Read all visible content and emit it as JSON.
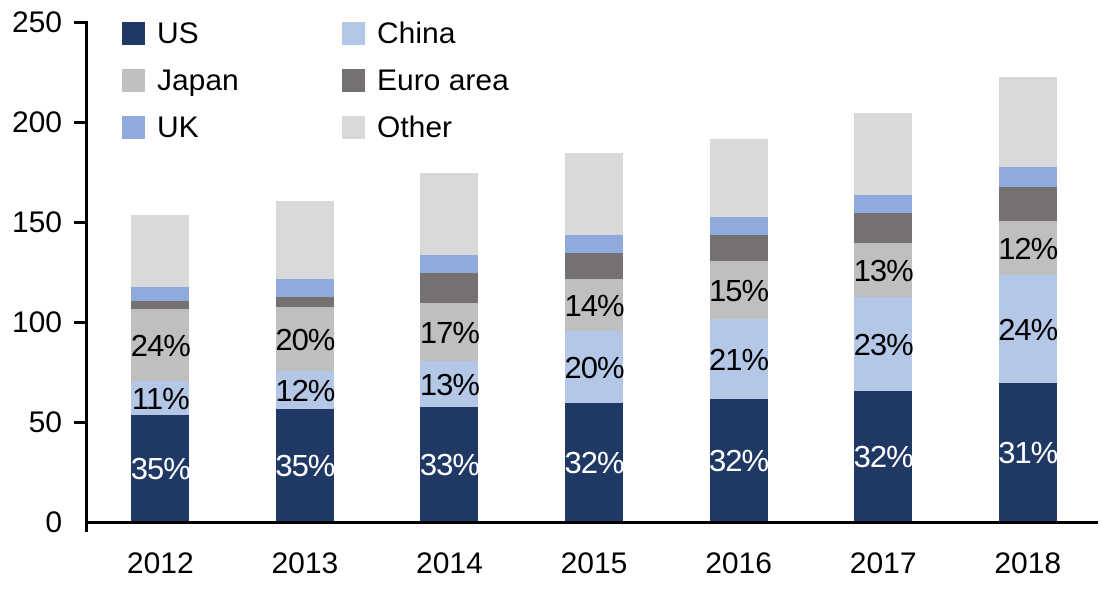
{
  "chart_data": {
    "type": "bar",
    "stacked": true,
    "title": "",
    "xlabel": "",
    "ylabel": "",
    "grid": false,
    "legend_position": "top-left-two-columns",
    "axis_color": "#000000",
    "background_color": "#ffffff",
    "ylim": [
      0,
      250
    ],
    "yticks": [
      0,
      50,
      100,
      150,
      200,
      250
    ],
    "categories": [
      "2012",
      "2013",
      "2014",
      "2015",
      "2016",
      "2017",
      "2018"
    ],
    "series": [
      {
        "name": "US",
        "color": "#1F3864",
        "label_color": "#FFFFFF",
        "values": [
          53,
          56,
          57,
          59,
          61,
          65,
          69
        ],
        "labels": [
          "35%",
          "35%",
          "33%",
          "32%",
          "32%",
          "32%",
          "31%"
        ]
      },
      {
        "name": "China",
        "color": "#B4C7E7",
        "label_color": "#000000",
        "values": [
          17,
          19,
          23,
          36,
          40,
          47,
          54
        ],
        "labels": [
          "11%",
          "12%",
          "13%",
          "20%",
          "21%",
          "23%",
          "24%"
        ]
      },
      {
        "name": "Japan",
        "color": "#BFBFBF",
        "label_color": "#000000",
        "values": [
          36,
          32,
          29,
          26,
          29,
          27,
          27
        ],
        "labels": [
          "24%",
          "20%",
          "17%",
          "14%",
          "15%",
          "13%",
          "12%"
        ]
      },
      {
        "name": "Euro area",
        "color": "#767171",
        "label_color": "#000000",
        "values": [
          4,
          5,
          15,
          13,
          13,
          15,
          17
        ],
        "labels": [
          "",
          "",
          "",
          "",
          "",
          "",
          ""
        ]
      },
      {
        "name": "UK",
        "color": "#8FAADC",
        "label_color": "#000000",
        "values": [
          7,
          9,
          9,
          9,
          9,
          9,
          10
        ],
        "labels": [
          "",
          "",
          "",
          "",
          "",
          "",
          ""
        ]
      },
      {
        "name": "Other",
        "color": "#D9D9D9",
        "label_color": "#000000",
        "values": [
          36,
          39,
          41,
          41,
          39,
          41,
          45
        ],
        "labels": [
          "",
          "",
          "",
          "",
          "",
          "",
          ""
        ]
      }
    ],
    "totals": [
      153,
      160,
      174,
      184,
      191,
      204,
      222
    ]
  },
  "legend": {
    "items": [
      {
        "label": "US",
        "color": "#1F3864"
      },
      {
        "label": "China",
        "color": "#B4C7E7"
      },
      {
        "label": "Japan",
        "color": "#BFBFBF"
      },
      {
        "label": "Euro area",
        "color": "#767171"
      },
      {
        "label": "UK",
        "color": "#8FAADC"
      },
      {
        "label": "Other",
        "color": "#D9D9D9"
      }
    ]
  },
  "axes": {
    "y_tick_labels": [
      "0",
      "50",
      "100",
      "150",
      "200",
      "250"
    ],
    "x_tick_labels": [
      "2012",
      "2013",
      "2014",
      "2015",
      "2016",
      "2017",
      "2018"
    ]
  }
}
